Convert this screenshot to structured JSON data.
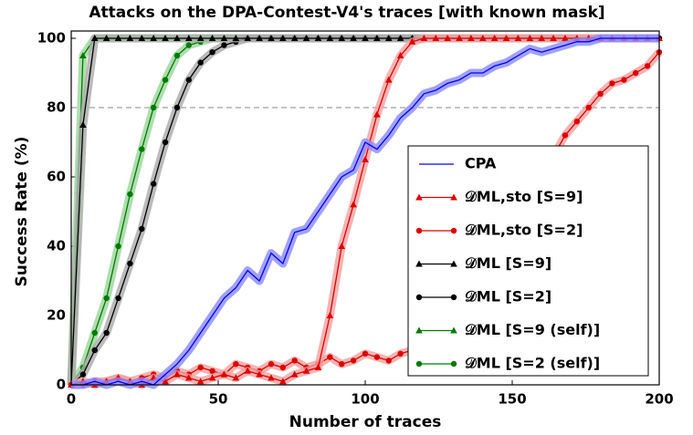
{
  "chart_data": {
    "type": "line",
    "title": "Attacks on the DPA-Contest-V4's traces [with known mask]",
    "x_label": "Number of traces",
    "y_label": "Success Rate (%)",
    "xlim": [
      0,
      200
    ],
    "ylim": [
      0,
      100
    ],
    "xticks": [
      0,
      50,
      100,
      150,
      200
    ],
    "yticks": [
      0,
      20,
      40,
      60,
      80,
      100
    ],
    "reference_line": 80,
    "x": [
      0,
      4,
      8,
      12,
      16,
      20,
      24,
      28,
      32,
      36,
      40,
      44,
      48,
      52,
      56,
      60,
      64,
      68,
      72,
      76,
      80,
      84,
      88,
      92,
      96,
      100,
      104,
      108,
      112,
      116,
      120,
      124,
      128,
      132,
      136,
      140,
      144,
      148,
      152,
      156,
      160,
      164,
      168,
      172,
      176,
      180,
      184,
      188,
      192,
      196,
      200
    ],
    "series": [
      {
        "name": "CPA",
        "color": "#0000ff",
        "band_color": "#8a8aff",
        "marker": null,
        "values": [
          0,
          0,
          1,
          0,
          1,
          0,
          1,
          0,
          3,
          6,
          10,
          15,
          20,
          25,
          28,
          33,
          30,
          38,
          35,
          44,
          45,
          50,
          55,
          60,
          62,
          70,
          68,
          72,
          77,
          80,
          84,
          85,
          87,
          88,
          90,
          90,
          92,
          93,
          95,
          97,
          96,
          97,
          98,
          99,
          99,
          100,
          100,
          100,
          100,
          100,
          100
        ]
      },
      {
        "name": "𝒟ML,sto [S=9]",
        "color": "#dd0000",
        "band_color": "#f4a0a0",
        "marker": "triangle",
        "values": [
          0,
          1,
          0,
          1,
          2,
          1,
          0,
          2,
          1,
          3,
          2,
          1,
          2,
          3,
          2,
          4,
          3,
          2,
          1,
          3,
          4,
          5,
          20,
          40,
          52,
          65,
          78,
          88,
          95,
          99,
          100,
          100,
          100,
          100,
          100,
          100,
          100,
          100,
          100,
          100,
          100,
          100,
          100,
          100,
          100,
          100,
          100,
          100,
          100,
          100,
          100
        ]
      },
      {
        "name": "𝒟ML,sto [S=2]",
        "color": "#dd0000",
        "band_color": "#f4a0a0",
        "marker": "circle",
        "values": [
          0,
          0,
          1,
          1,
          2,
          1,
          2,
          3,
          2,
          4,
          3,
          5,
          4,
          3,
          6,
          5,
          4,
          6,
          5,
          7,
          5,
          6,
          8,
          6,
          7,
          9,
          8,
          7,
          9,
          10,
          10,
          12,
          15,
          18,
          20,
          25,
          32,
          38,
          45,
          52,
          58,
          66,
          72,
          76,
          80,
          84,
          87,
          88,
          90,
          92,
          96
        ]
      },
      {
        "name": "𝒟ML [S=9]",
        "color": "#000000",
        "band_color": "#aaaaaa",
        "marker": "triangle",
        "values": [
          0,
          75,
          100,
          100,
          100,
          100,
          100,
          100,
          100,
          100,
          100,
          100,
          100,
          100,
          100,
          100,
          100,
          100,
          100,
          100,
          100,
          100,
          100,
          100,
          100,
          100,
          100,
          100,
          100,
          100,
          100,
          100,
          100,
          100,
          100,
          100,
          100,
          100,
          100,
          100,
          100,
          100,
          100,
          100,
          100,
          100,
          100,
          100,
          100,
          100,
          100
        ]
      },
      {
        "name": "𝒟ML [S=2]",
        "color": "#000000",
        "band_color": "#aaaaaa",
        "marker": "circle",
        "values": [
          0,
          3,
          10,
          15,
          25,
          35,
          45,
          58,
          70,
          80,
          88,
          93,
          96,
          98,
          99,
          100,
          100,
          100,
          100,
          100,
          100,
          100,
          100,
          100,
          100,
          100,
          100,
          100,
          100,
          100,
          100,
          100,
          100,
          100,
          100,
          100,
          100,
          100,
          100,
          100,
          100,
          100,
          100,
          100,
          100,
          100,
          100,
          100,
          100,
          100,
          100
        ]
      },
      {
        "name": "𝒟ML [S=9 (self)]",
        "color": "#007a00",
        "band_color": "#99d699",
        "marker": "triangle",
        "values": [
          0,
          95,
          100,
          100,
          100,
          100,
          100,
          100,
          100,
          100,
          100,
          100,
          100,
          100,
          100,
          100,
          100,
          100,
          100,
          100,
          100,
          100,
          100,
          100,
          100,
          100,
          100,
          100,
          100,
          100,
          100,
          100,
          100,
          100,
          100,
          100,
          100,
          100,
          100,
          100,
          100,
          100,
          100,
          100,
          100,
          100,
          100,
          100,
          100,
          100,
          100
        ]
      },
      {
        "name": "𝒟ML [S=2 (self)]",
        "color": "#007a00",
        "band_color": "#99d699",
        "marker": "circle",
        "values": [
          0,
          5,
          15,
          25,
          40,
          55,
          68,
          80,
          88,
          95,
          98,
          99,
          100,
          100,
          100,
          100,
          100,
          100,
          100,
          100,
          100,
          100,
          100,
          100,
          100,
          100,
          100,
          100,
          100,
          100,
          100,
          100,
          100,
          100,
          100,
          100,
          100,
          100,
          100,
          100,
          100,
          100,
          100,
          100,
          100,
          100,
          100,
          100,
          100,
          100,
          100
        ]
      }
    ],
    "legend": "lower right"
  }
}
